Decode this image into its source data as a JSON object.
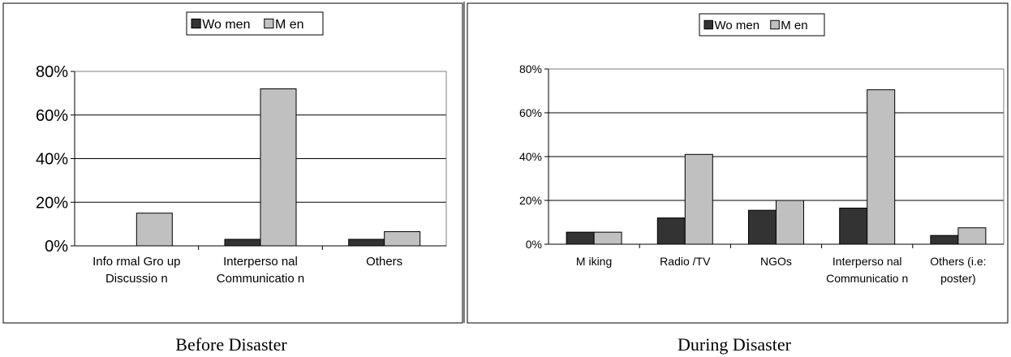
{
  "colors": {
    "women": "#333333",
    "men": "#c0c0c0",
    "frame": "#000000",
    "grid": "#000000"
  },
  "chart_data": [
    {
      "type": "bar",
      "caption": "Before Disaster",
      "categories": [
        [
          "Info rmal Gro up",
          "Discussio n"
        ],
        [
          "Interperso nal",
          "Communicatio n"
        ],
        [
          "Others"
        ]
      ],
      "series": [
        {
          "name": "Wo men",
          "values": [
            0,
            3,
            3
          ]
        },
        {
          "name": "M en",
          "values": [
            15,
            72,
            6.5
          ]
        }
      ],
      "yticks": [
        "0%",
        "20%",
        "40%",
        "60%",
        "80%"
      ],
      "ylim": [
        0,
        80
      ],
      "grid": true,
      "legend": "top-center"
    },
    {
      "type": "bar",
      "caption": "During Disaster",
      "categories": [
        [
          "M iking"
        ],
        [
          "Radio /TV"
        ],
        [
          "NGOs"
        ],
        [
          "Interperso nal",
          "Communicatio n"
        ],
        [
          "Others (i.e:",
          "poster)"
        ]
      ],
      "series": [
        {
          "name": "Wo men",
          "values": [
            5.5,
            12,
            15.5,
            16.5,
            4
          ]
        },
        {
          "name": "M en",
          "values": [
            5.5,
            41,
            20,
            70.5,
            7.5
          ]
        }
      ],
      "yticks": [
        "0%",
        "20%",
        "40%",
        "60%",
        "80%"
      ],
      "ylim": [
        0,
        80
      ],
      "grid": true,
      "legend": "top-center"
    }
  ]
}
